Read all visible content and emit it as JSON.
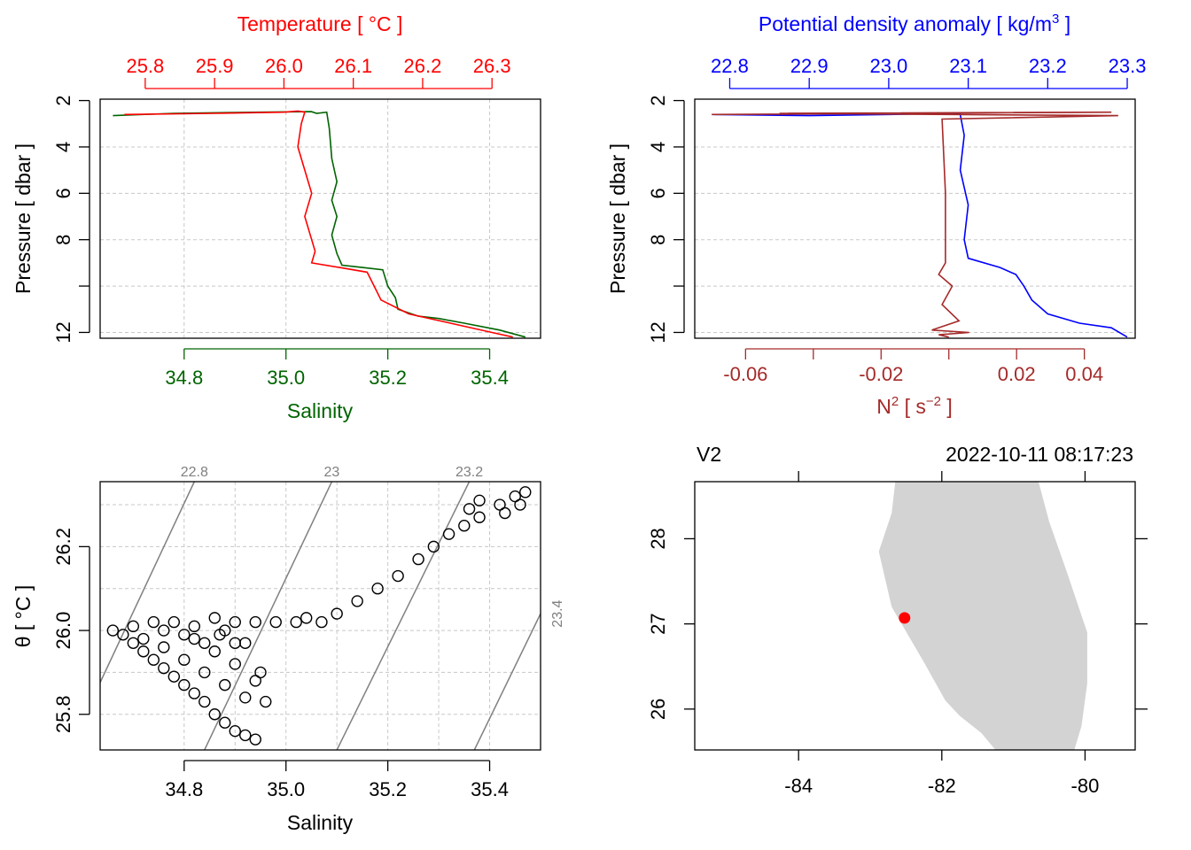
{
  "colors": {
    "temperature": "#ff0000",
    "salinity": "#006400",
    "density": "#0000ff",
    "n2": "#a52a2a",
    "isopycnal": "#808080",
    "coast_land": "#d3d3d3",
    "station": "#ff0000"
  },
  "chart_data": [
    {
      "id": "profile_ts",
      "type": "line",
      "top_axis": {
        "label": "Temperature [ °C ]",
        "ticks": [
          "25.8",
          "25.9",
          "26.0",
          "26.1",
          "26.2",
          "26.3"
        ],
        "range": [
          25.735,
          26.37
        ]
      },
      "bottom_axis": {
        "label": "Salinity",
        "ticks": [
          "34.8",
          "35.0",
          "35.2",
          "35.4"
        ],
        "range": [
          34.635,
          35.5
        ]
      },
      "left_axis": {
        "label": "Pressure [ dbar ]",
        "ticks": [
          "2",
          "4",
          "6",
          "8",
          "12"
        ],
        "range": [
          1.94,
          12.25
        ],
        "reversed": true
      },
      "grid": true,
      "series": [
        {
          "variable": "salinity",
          "color": "#006400",
          "points": [
            [
              34.66,
              2.65
            ],
            [
              34.78,
              2.55
            ],
            [
              34.95,
              2.5
            ],
            [
              35.05,
              2.48
            ],
            [
              35.06,
              2.55
            ],
            [
              35.08,
              2.5
            ],
            [
              35.085,
              3.2
            ],
            [
              35.09,
              4.5
            ],
            [
              35.1,
              5.5
            ],
            [
              35.09,
              6.3
            ],
            [
              35.1,
              7.0
            ],
            [
              35.09,
              7.8
            ],
            [
              35.1,
              8.6
            ],
            [
              35.11,
              9.1
            ],
            [
              35.15,
              9.2
            ],
            [
              35.19,
              9.3
            ],
            [
              35.2,
              10.0
            ],
            [
              35.215,
              10.5
            ],
            [
              35.22,
              11.0
            ],
            [
              35.26,
              11.3
            ],
            [
              35.3,
              11.4
            ],
            [
              35.35,
              11.6
            ],
            [
              35.42,
              11.9
            ],
            [
              35.47,
              12.2
            ]
          ]
        },
        {
          "variable": "temperature",
          "color": "#ff0000",
          "points": [
            [
              25.77,
              2.6
            ],
            [
              25.9,
              2.55
            ],
            [
              26.0,
              2.5
            ],
            [
              26.02,
              2.45
            ],
            [
              26.03,
              2.5
            ],
            [
              26.025,
              3.0
            ],
            [
              26.02,
              4.0
            ],
            [
              26.03,
              5.0
            ],
            [
              26.04,
              6.0
            ],
            [
              26.03,
              7.0
            ],
            [
              26.04,
              8.0
            ],
            [
              26.045,
              8.5
            ],
            [
              26.04,
              9.0
            ],
            [
              26.08,
              9.2
            ],
            [
              26.12,
              9.4
            ],
            [
              26.13,
              10.0
            ],
            [
              26.14,
              10.6
            ],
            [
              26.18,
              11.2
            ],
            [
              26.24,
              11.6
            ],
            [
              26.3,
              12.0
            ],
            [
              26.33,
              12.2
            ]
          ]
        }
      ]
    },
    {
      "id": "profile_density",
      "type": "line",
      "top_axis": {
        "label": "Potential density anomaly [ kg/m",
        "label_sup": "3",
        "label_end": " ]",
        "ticks": [
          "22.8",
          "22.9",
          "23.0",
          "23.1",
          "23.2",
          "23.3"
        ],
        "range": [
          22.756,
          23.31
        ]
      },
      "bottom_axis": {
        "label": "N",
        "label_sup": "2",
        "label_unit": " [ s",
        "unit_sup": "−2",
        "label_end": " ]",
        "ticks": [
          "-0.06",
          "-0.02",
          "0.02",
          "0.04"
        ],
        "range": [
          -0.075,
          0.055
        ]
      },
      "left_axis": {
        "label": "Pressure [ dbar ]",
        "ticks": [
          "2",
          "4",
          "6",
          "8",
          "12"
        ],
        "range": [
          1.94,
          12.25
        ],
        "reversed": true
      },
      "grid": true,
      "series": [
        {
          "variable": "density",
          "color": "#0000ff",
          "points": [
            [
              22.78,
              2.6
            ],
            [
              22.9,
              2.65
            ],
            [
              23.0,
              2.6
            ],
            [
              23.08,
              2.55
            ],
            [
              23.09,
              2.6
            ],
            [
              23.095,
              3.5
            ],
            [
              23.09,
              5.0
            ],
            [
              23.1,
              6.5
            ],
            [
              23.095,
              8.0
            ],
            [
              23.1,
              8.8
            ],
            [
              23.14,
              9.2
            ],
            [
              23.16,
              9.5
            ],
            [
              23.17,
              10.0
            ],
            [
              23.18,
              10.6
            ],
            [
              23.2,
              11.2
            ],
            [
              23.24,
              11.6
            ],
            [
              23.28,
              11.8
            ],
            [
              23.3,
              12.2
            ]
          ]
        },
        {
          "variable": "N2",
          "color": "#a52a2a",
          "points": [
            [
              -0.07,
              2.6
            ],
            [
              0.048,
              2.5
            ],
            [
              -0.05,
              2.55
            ],
            [
              0.05,
              2.65
            ],
            [
              -0.002,
              2.8
            ],
            [
              -0.001,
              6.0
            ],
            [
              -0.001,
              9.0
            ],
            [
              -0.003,
              9.5
            ],
            [
              0.001,
              10.0
            ],
            [
              -0.002,
              10.8
            ],
            [
              0.003,
              11.5
            ],
            [
              -0.005,
              11.9
            ],
            [
              0.006,
              12.0
            ],
            [
              -0.003,
              12.1
            ],
            [
              0.0,
              12.2
            ]
          ]
        }
      ]
    },
    {
      "id": "ts_diagram",
      "type": "scatter",
      "title": "",
      "xlabel": "Salinity",
      "ylabel": "θ [ °C ]",
      "xticks": [
        "34.8",
        "35.0",
        "35.2",
        "35.4"
      ],
      "yticks": [
        "25.8",
        "26.0",
        "26.2"
      ],
      "xlim": [
        34.635,
        35.5
      ],
      "ylim": [
        25.715,
        26.355
      ],
      "grid": true,
      "isopycnals": [
        {
          "label": "22.8",
          "from": [
            34.625,
            25.85
          ],
          "to": [
            34.82,
            26.355
          ]
        },
        {
          "label": "23",
          "from": [
            34.84,
            25.715
          ],
          "to": [
            35.09,
            26.355
          ]
        },
        {
          "label": "23.2",
          "from": [
            35.1,
            25.715
          ],
          "to": [
            35.36,
            26.355
          ]
        },
        {
          "label": "23.4",
          "from": [
            35.37,
            25.715
          ],
          "to": [
            35.5,
            26.04
          ]
        }
      ],
      "points": [
        [
          34.66,
          26.0
        ],
        [
          34.68,
          25.99
        ],
        [
          34.7,
          25.97
        ],
        [
          34.72,
          25.95
        ],
        [
          34.74,
          25.93
        ],
        [
          34.76,
          25.91
        ],
        [
          34.78,
          25.89
        ],
        [
          34.8,
          25.87
        ],
        [
          34.82,
          25.85
        ],
        [
          34.84,
          25.83
        ],
        [
          34.86,
          25.8
        ],
        [
          34.88,
          25.78
        ],
        [
          34.9,
          25.76
        ],
        [
          34.92,
          25.75
        ],
        [
          34.94,
          25.74
        ],
        [
          34.7,
          26.01
        ],
        [
          34.74,
          26.02
        ],
        [
          34.78,
          26.02
        ],
        [
          34.82,
          26.01
        ],
        [
          34.86,
          26.03
        ],
        [
          34.9,
          26.02
        ],
        [
          34.94,
          26.02
        ],
        [
          34.98,
          26.02
        ],
        [
          35.02,
          26.02
        ],
        [
          34.76,
          25.96
        ],
        [
          34.8,
          25.93
        ],
        [
          34.84,
          25.9
        ],
        [
          34.88,
          25.87
        ],
        [
          34.92,
          25.84
        ],
        [
          34.96,
          25.83
        ],
        [
          34.82,
          25.98
        ],
        [
          34.86,
          25.95
        ],
        [
          34.9,
          25.92
        ],
        [
          34.94,
          25.88
        ],
        [
          34.87,
          25.99
        ],
        [
          34.92,
          25.97
        ],
        [
          34.95,
          25.9
        ],
        [
          34.72,
          25.98
        ],
        [
          34.76,
          26.0
        ],
        [
          34.8,
          25.99
        ],
        [
          34.84,
          25.97
        ],
        [
          34.88,
          26.0
        ],
        [
          34.9,
          25.97
        ],
        [
          35.04,
          26.03
        ],
        [
          35.07,
          26.02
        ],
        [
          35.1,
          26.04
        ],
        [
          35.14,
          26.07
        ],
        [
          35.18,
          26.1
        ],
        [
          35.22,
          26.13
        ],
        [
          35.26,
          26.17
        ],
        [
          35.29,
          26.2
        ],
        [
          35.32,
          26.23
        ],
        [
          35.35,
          26.25
        ],
        [
          35.38,
          26.27
        ],
        [
          35.42,
          26.3
        ],
        [
          35.45,
          26.32
        ],
        [
          35.47,
          26.33
        ],
        [
          35.36,
          26.29
        ],
        [
          35.38,
          26.31
        ],
        [
          35.43,
          26.28
        ],
        [
          35.46,
          26.3
        ]
      ]
    },
    {
      "id": "station_map",
      "type": "scatter",
      "title_left": "V2",
      "title_right": "2022-10-11 08:17:23",
      "xticks": [
        "-84",
        "-82",
        "-80"
      ],
      "yticks": [
        "26",
        "27",
        "28"
      ],
      "xlim": [
        -85.45,
        -79.3
      ],
      "ylim": [
        25.52,
        28.67
      ],
      "grid": false,
      "land_outline": [
        [
          -82.65,
          28.67
        ],
        [
          -80.65,
          28.67
        ],
        [
          -80.5,
          28.2
        ],
        [
          -80.25,
          27.6
        ],
        [
          -80.05,
          27.1
        ],
        [
          -79.97,
          26.9
        ],
        [
          -79.97,
          26.3
        ],
        [
          -80.05,
          25.8
        ],
        [
          -80.15,
          25.52
        ],
        [
          -81.25,
          25.52
        ],
        [
          -81.45,
          25.72
        ],
        [
          -81.75,
          25.92
        ],
        [
          -81.95,
          26.1
        ],
        [
          -82.25,
          26.55
        ],
        [
          -82.7,
          27.2
        ],
        [
          -82.88,
          27.85
        ],
        [
          -82.7,
          28.3
        ]
      ],
      "points": [
        {
          "lon": -82.52,
          "lat": 27.07,
          "color": "#ff0000"
        }
      ]
    }
  ]
}
